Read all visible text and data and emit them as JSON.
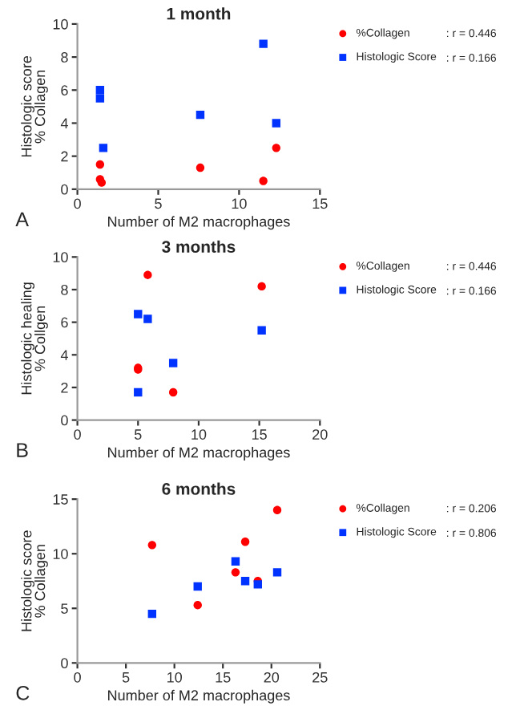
{
  "chart_data": [
    {
      "type": "scatter",
      "title": "1 month",
      "xlabel": "Number of M2 macrophages",
      "ylabel": "Histologic score\n% Collagen",
      "xlim": [
        0,
        15
      ],
      "xticks": [
        0,
        5,
        10,
        15
      ],
      "ylim": [
        0,
        10
      ],
      "yticks": [
        0,
        2,
        4,
        6,
        8,
        10
      ],
      "grid": false,
      "legend": "top right",
      "annotations": [
        ": r = 0.446",
        ": r = 0.166",
        "A"
      ],
      "series": [
        {
          "name": "%Collagen",
          "color": "#ff0000",
          "marker": "circle",
          "x": [
            1.4,
            1.4,
            1.5,
            7.6,
            11.5,
            12.3
          ],
          "values": [
            1.5,
            0.6,
            0.4,
            1.3,
            0.5,
            2.5
          ]
        },
        {
          "name": "Histologic Score",
          "color": "#0033ff",
          "marker": "square",
          "x": [
            1.4,
            1.4,
            1.6,
            7.6,
            11.5,
            12.3
          ],
          "values": [
            6.0,
            5.5,
            2.5,
            4.5,
            8.8,
            4.0
          ]
        }
      ]
    },
    {
      "type": "scatter",
      "title": "3 months",
      "xlabel": "Number of M2 macrophages",
      "ylabel": "Histologic healing\n% Collgen",
      "xlim": [
        0,
        20
      ],
      "xticks": [
        0,
        5,
        10,
        15,
        20
      ],
      "ylim": [
        0,
        10
      ],
      "yticks": [
        0,
        2,
        4,
        6,
        8,
        10
      ],
      "grid": false,
      "legend": "top right",
      "annotations": [
        ": r = 0.446",
        ": r = 0.166",
        "B"
      ],
      "series": [
        {
          "name": "%Collagen",
          "color": "#ff0000",
          "marker": "circle",
          "x": [
            5.8,
            15.2,
            5.0,
            5.0,
            7.9
          ],
          "values": [
            8.9,
            8.2,
            3.2,
            3.1,
            1.7
          ]
        },
        {
          "name": "Histologic Score",
          "color": "#0033ff",
          "marker": "square",
          "x": [
            5.0,
            5.8,
            7.9,
            15.2,
            5.0
          ],
          "values": [
            6.5,
            6.2,
            3.5,
            5.5,
            1.7
          ]
        }
      ]
    },
    {
      "type": "scatter",
      "title": "6 months",
      "xlabel": "Number of M2 macrophages",
      "ylabel": "Histologic score\n% Collagen",
      "xlim": [
        0,
        25
      ],
      "xticks": [
        0,
        5,
        10,
        15,
        20,
        25
      ],
      "ylim": [
        0,
        15
      ],
      "yticks": [
        0,
        5,
        10,
        15
      ],
      "grid": false,
      "legend": "top right",
      "annotations": [
        ": r = 0.206",
        ": r = 0.806",
        "C"
      ],
      "series": [
        {
          "name": "%Collagen",
          "color": "#ff0000",
          "marker": "circle",
          "x": [
            7.7,
            20.6,
            17.3,
            16.3,
            18.6,
            12.4
          ],
          "values": [
            10.8,
            14.0,
            11.1,
            8.3,
            7.5,
            5.3
          ]
        },
        {
          "name": "Histologic Score",
          "color": "#0033ff",
          "marker": "square",
          "x": [
            7.7,
            12.4,
            16.3,
            17.3,
            18.6,
            20.6
          ],
          "values": [
            4.5,
            7.0,
            9.3,
            7.5,
            7.2,
            8.3
          ]
        }
      ]
    }
  ]
}
